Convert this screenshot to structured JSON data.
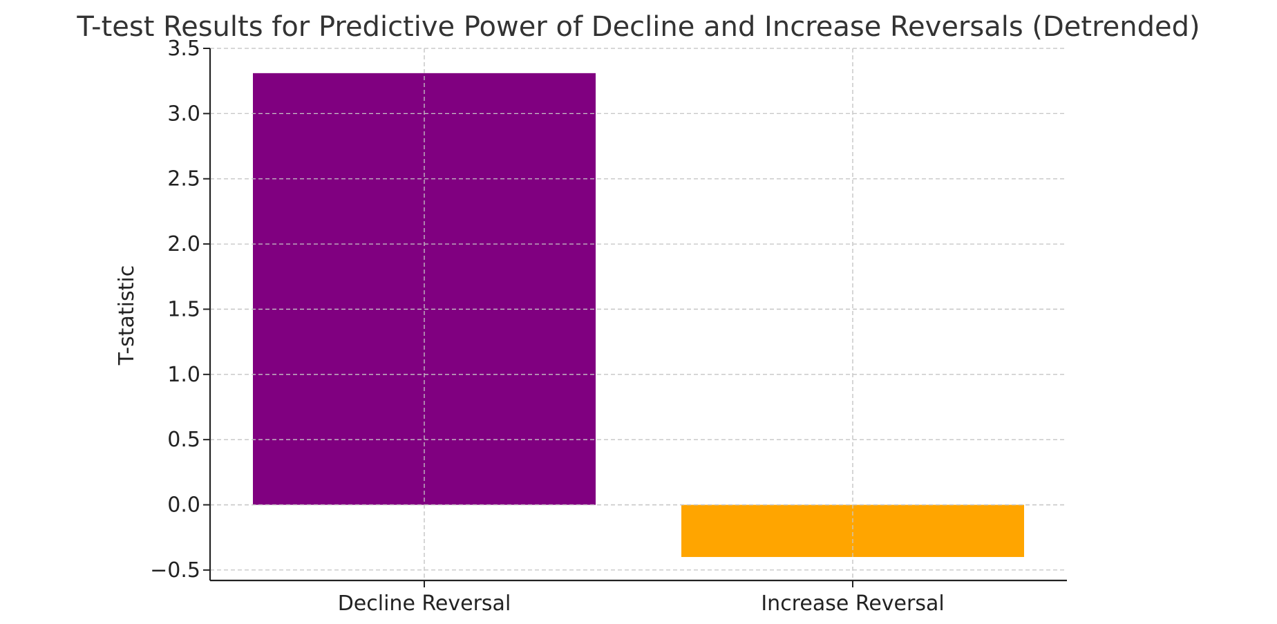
{
  "chart_data": {
    "type": "bar",
    "title": "T-test Results for Predictive Power of Decline and Increase Reversals (Detrended)",
    "xlabel": "",
    "ylabel": "T-statistic",
    "categories": [
      "Decline Reversal",
      "Increase Reversal"
    ],
    "values": [
      3.31,
      -0.4
    ],
    "colors": [
      "#800080",
      "#FFA500"
    ],
    "ylim": [
      -0.58,
      3.5
    ],
    "yticks": [
      -0.5,
      0.0,
      0.5,
      1.0,
      1.5,
      2.0,
      2.5,
      3.0,
      3.5
    ],
    "ytick_labels": [
      "−0.5",
      "0.0",
      "0.5",
      "1.0",
      "1.5",
      "2.0",
      "2.5",
      "3.0",
      "3.5"
    ],
    "grid": true,
    "legend": "none"
  }
}
